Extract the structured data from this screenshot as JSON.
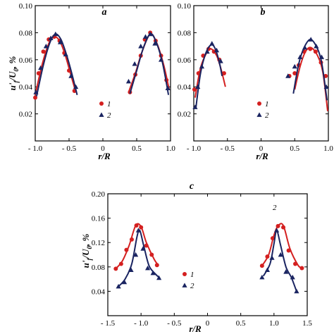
{
  "colors": {
    "series1": "#d42020",
    "series2": "#1a2461"
  },
  "chart_data": [
    {
      "id": "a",
      "type": "scatter",
      "panel_label": "a",
      "xlabel": "r/R",
      "ylabel": "u'f/U0, %",
      "xlim": [
        -1.0,
        1.0
      ],
      "ylim": [
        0.0,
        0.1
      ],
      "xticks": [
        -1.0,
        -0.5,
        0,
        0.5,
        1.0
      ],
      "xtick_labels": [
        "- 1.0",
        "- 0.5",
        "0",
        "0.5",
        "1.0"
      ],
      "yticks": [
        0.02,
        0.04,
        0.06,
        0.08,
        0.1
      ],
      "ytick_labels": [
        "0.02",
        "0.04",
        "0.06",
        "0.08",
        "0.10"
      ],
      "legend": [
        {
          "label": "1",
          "marker": "circle"
        },
        {
          "label": "2",
          "marker": "triangle"
        }
      ],
      "series": [
        {
          "name": "1",
          "marker": "circle",
          "points": [
            [
              -1.0,
              0.032
            ],
            [
              -0.95,
              0.05
            ],
            [
              -0.88,
              0.066
            ],
            [
              -0.8,
              0.075
            ],
            [
              -0.72,
              0.077
            ],
            [
              -0.64,
              0.074
            ],
            [
              -0.57,
              0.065
            ],
            [
              -0.5,
              0.052
            ],
            [
              -0.42,
              0.037
            ],
            [
              0.4,
              0.036
            ],
            [
              0.48,
              0.049
            ],
            [
              0.56,
              0.063
            ],
            [
              0.62,
              0.075
            ],
            [
              0.7,
              0.08
            ],
            [
              0.78,
              0.074
            ],
            [
              0.86,
              0.063
            ],
            [
              0.94,
              0.045
            ]
          ],
          "curves": [
            [
              [
                -1.0,
                0.034
              ],
              [
                -0.9,
                0.056
              ],
              [
                -0.8,
                0.072
              ],
              [
                -0.72,
                0.077
              ],
              [
                -0.64,
                0.074
              ],
              [
                -0.56,
                0.064
              ],
              [
                -0.48,
                0.05
              ],
              [
                -0.4,
                0.036
              ]
            ],
            [
              [
                0.38,
                0.036
              ],
              [
                0.48,
                0.05
              ],
              [
                0.58,
                0.066
              ],
              [
                0.7,
                0.079
              ],
              [
                0.8,
                0.072
              ],
              [
                0.9,
                0.056
              ],
              [
                0.98,
                0.038
              ]
            ]
          ]
        },
        {
          "name": "2",
          "marker": "triangle",
          "points": [
            [
              -0.99,
              0.036
            ],
            [
              -0.92,
              0.054
            ],
            [
              -0.84,
              0.07
            ],
            [
              -0.77,
              0.076
            ],
            [
              -0.7,
              0.079
            ],
            [
              -0.63,
              0.073
            ],
            [
              -0.55,
              0.064
            ],
            [
              -0.47,
              0.048
            ],
            [
              -0.4,
              0.04
            ],
            [
              0.38,
              0.044
            ],
            [
              0.47,
              0.057
            ],
            [
              0.56,
              0.07
            ],
            [
              0.63,
              0.077
            ],
            [
              0.7,
              0.079
            ],
            [
              0.77,
              0.072
            ],
            [
              0.86,
              0.06
            ],
            [
              0.96,
              0.039
            ]
          ],
          "curves": [
            [
              [
                -0.98,
                0.033
              ],
              [
                -0.88,
                0.056
              ],
              [
                -0.78,
                0.073
              ],
              [
                -0.7,
                0.079
              ],
              [
                -0.62,
                0.075
              ],
              [
                -0.54,
                0.064
              ],
              [
                -0.46,
                0.05
              ],
              [
                -0.38,
                0.034
              ]
            ],
            [
              [
                0.4,
                0.035
              ],
              [
                0.5,
                0.052
              ],
              [
                0.6,
                0.069
              ],
              [
                0.7,
                0.079
              ],
              [
                0.78,
                0.074
              ],
              [
                0.88,
                0.058
              ],
              [
                0.97,
                0.034
              ]
            ]
          ]
        }
      ]
    },
    {
      "id": "b",
      "type": "scatter",
      "panel_label": "b",
      "xlabel": "r/R",
      "ylabel": "",
      "xlim": [
        -1.0,
        1.0
      ],
      "ylim": [
        0.0,
        0.1
      ],
      "xticks": [
        -1.0,
        -0.5,
        0,
        0.5,
        1.0
      ],
      "xtick_labels": [
        "- 1.0",
        "- 0.5",
        "0",
        "0.5",
        "1.0"
      ],
      "yticks": [
        0.02,
        0.04,
        0.06,
        0.08,
        0.1
      ],
      "ytick_labels": [
        "0.02",
        "0.04",
        "0.06",
        "0.08",
        "0.10"
      ],
      "legend": [
        {
          "label": "1",
          "marker": "circle"
        },
        {
          "label": "2",
          "marker": "triangle"
        }
      ],
      "series": [
        {
          "name": "1",
          "marker": "circle",
          "points": [
            [
              -0.99,
              0.038
            ],
            [
              -0.93,
              0.05
            ],
            [
              -0.86,
              0.063
            ],
            [
              -0.78,
              0.068
            ],
            [
              -0.7,
              0.066
            ],
            [
              -0.62,
              0.06
            ],
            [
              -0.55,
              0.05
            ],
            [
              0.42,
              0.048
            ],
            [
              0.5,
              0.05
            ],
            [
              0.56,
              0.056
            ],
            [
              0.64,
              0.066
            ],
            [
              0.73,
              0.068
            ],
            [
              0.81,
              0.066
            ],
            [
              0.89,
              0.058
            ],
            [
              0.96,
              0.048
            ]
          ],
          "curves": [
            [
              [
                -0.98,
                0.032
              ],
              [
                -0.9,
                0.054
              ],
              [
                -0.8,
                0.066
              ],
              [
                -0.74,
                0.068
              ],
              [
                -0.66,
                0.063
              ],
              [
                -0.6,
                0.054
              ],
              [
                -0.53,
                0.04
              ]
            ],
            [
              [
                0.5,
                0.038
              ],
              [
                0.58,
                0.055
              ],
              [
                0.66,
                0.066
              ],
              [
                0.74,
                0.069
              ],
              [
                0.84,
                0.063
              ],
              [
                0.92,
                0.05
              ],
              [
                0.99,
                0.022
              ]
            ]
          ]
        },
        {
          "name": "2",
          "marker": "triangle",
          "points": [
            [
              -0.98,
              0.025
            ],
            [
              -0.94,
              0.04
            ],
            [
              -0.88,
              0.055
            ],
            [
              -0.8,
              0.066
            ],
            [
              -0.73,
              0.072
            ],
            [
              -0.66,
              0.067
            ],
            [
              -0.6,
              0.059
            ],
            [
              0.4,
              0.048
            ],
            [
              0.5,
              0.055
            ],
            [
              0.58,
              0.062
            ],
            [
              0.65,
              0.069
            ],
            [
              0.74,
              0.075
            ],
            [
              0.82,
              0.07
            ],
            [
              0.9,
              0.062
            ],
            [
              0.97,
              0.04
            ]
          ],
          "curves": [
            [
              [
                -0.97,
                0.024
              ],
              [
                -0.9,
                0.05
              ],
              [
                -0.82,
                0.065
              ],
              [
                -0.74,
                0.071
              ],
              [
                -0.68,
                0.068
              ],
              [
                -0.62,
                0.058
              ],
              [
                -0.58,
                0.048
              ]
            ],
            [
              [
                0.48,
                0.035
              ],
              [
                0.56,
                0.057
              ],
              [
                0.64,
                0.069
              ],
              [
                0.73,
                0.075
              ],
              [
                0.82,
                0.07
              ],
              [
                0.9,
                0.058
              ],
              [
                0.98,
                0.03
              ]
            ]
          ]
        }
      ]
    },
    {
      "id": "c",
      "type": "scatter",
      "panel_label": "c",
      "xlabel": "r/R",
      "ylabel": "u'f/U0, %",
      "xlim": [
        -1.5,
        1.5
      ],
      "ylim": [
        0.0,
        0.2
      ],
      "xticks": [
        -1.5,
        -1.0,
        -0.5,
        0,
        0.5,
        1.0,
        1.5
      ],
      "xtick_labels": [
        "- 1.5",
        "- 1.0",
        "- 0.5",
        "0",
        "0.5",
        "1.0",
        "1.5"
      ],
      "yticks": [
        0.04,
        0.08,
        0.12,
        0.16,
        0.2
      ],
      "ytick_labels": [
        "0.04",
        "0.08",
        "0.12",
        "0.16",
        "0.20"
      ],
      "legend": [
        {
          "label": "1",
          "marker": "circle"
        },
        {
          "label": "2",
          "marker": "triangle"
        }
      ],
      "annotation": "2",
      "series": [
        {
          "name": "1",
          "marker": "circle",
          "points": [
            [
              -1.38,
              0.077
            ],
            [
              -1.3,
              0.085
            ],
            [
              -1.22,
              0.108
            ],
            [
              -1.14,
              0.125
            ],
            [
              -1.07,
              0.148
            ],
            [
              -1.0,
              0.145
            ],
            [
              -0.92,
              0.115
            ],
            [
              -0.84,
              0.1
            ],
            [
              -0.76,
              0.083
            ],
            [
              0.82,
              0.082
            ],
            [
              0.9,
              0.097
            ],
            [
              0.98,
              0.127
            ],
            [
              1.06,
              0.147
            ],
            [
              1.14,
              0.145
            ],
            [
              1.22,
              0.107
            ],
            [
              1.32,
              0.085
            ],
            [
              1.42,
              0.078
            ]
          ],
          "curves": [
            [
              [
                -1.38,
                0.077
              ],
              [
                -1.28,
                0.09
              ],
              [
                -1.18,
                0.115
              ],
              [
                -1.08,
                0.148
              ],
              [
                -1.0,
                0.146
              ],
              [
                -0.92,
                0.12
              ],
              [
                -0.8,
                0.092
              ],
              [
                -0.74,
                0.083
              ]
            ],
            [
              [
                0.82,
                0.082
              ],
              [
                0.92,
                0.1
              ],
              [
                1.0,
                0.132
              ],
              [
                1.06,
                0.147
              ],
              [
                1.14,
                0.148
              ],
              [
                1.24,
                0.11
              ],
              [
                1.36,
                0.083
              ],
              [
                1.42,
                0.078
              ]
            ]
          ]
        },
        {
          "name": "2",
          "marker": "triangle",
          "points": [
            [
              -1.34,
              0.048
            ],
            [
              -1.25,
              0.055
            ],
            [
              -1.15,
              0.075
            ],
            [
              -1.08,
              0.1
            ],
            [
              -1.04,
              0.14
            ],
            [
              -0.97,
              0.11
            ],
            [
              -0.9,
              0.078
            ],
            [
              -0.82,
              0.07
            ],
            [
              -0.73,
              0.062
            ],
            [
              0.82,
              0.063
            ],
            [
              0.9,
              0.075
            ],
            [
              0.97,
              0.095
            ],
            [
              1.04,
              0.14
            ],
            [
              1.1,
              0.1
            ],
            [
              1.18,
              0.072
            ],
            [
              1.28,
              0.063
            ],
            [
              1.34,
              0.04
            ]
          ],
          "curves": [
            [
              [
                -1.34,
                0.048
              ],
              [
                -1.24,
                0.06
              ],
              [
                -1.14,
                0.085
              ],
              [
                -1.06,
                0.13
              ],
              [
                -1.02,
                0.14
              ],
              [
                -0.96,
                0.115
              ],
              [
                -0.88,
                0.082
              ],
              [
                -0.78,
                0.068
              ],
              [
                -0.72,
                0.062
              ]
            ],
            [
              [
                0.84,
                0.065
              ],
              [
                0.94,
                0.085
              ],
              [
                1.0,
                0.118
              ],
              [
                1.04,
                0.14
              ],
              [
                1.1,
                0.115
              ],
              [
                1.18,
                0.08
              ],
              [
                1.26,
                0.063
              ],
              [
                1.34,
                0.04
              ]
            ]
          ]
        }
      ]
    }
  ]
}
